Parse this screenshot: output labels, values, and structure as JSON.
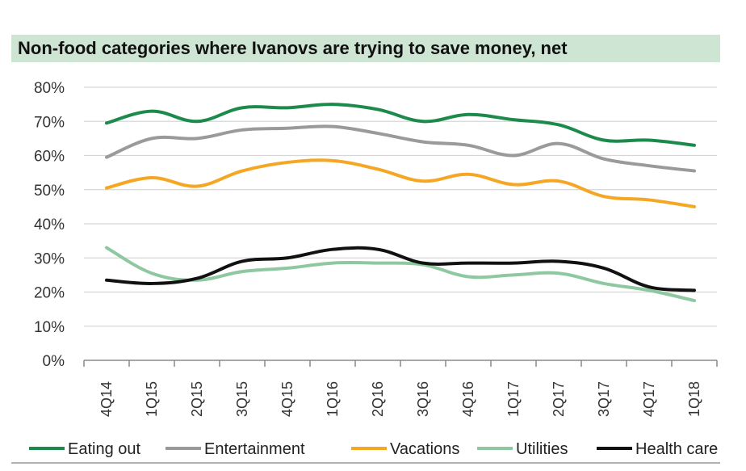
{
  "title": "Non-food categories where Ivanovs are trying to save money, net",
  "chart_data": {
    "type": "line",
    "title": "Non-food categories where Ivanovs are trying to save money, net",
    "xlabel": "",
    "ylabel": "",
    "ylim": [
      0,
      80
    ],
    "y_ticks": [
      "0%",
      "10%",
      "20%",
      "30%",
      "40%",
      "50%",
      "60%",
      "70%",
      "80%"
    ],
    "categories": [
      "4Q14",
      "1Q15",
      "2Q15",
      "3Q15",
      "4Q15",
      "1Q16",
      "2Q16",
      "3Q16",
      "4Q16",
      "1Q17",
      "2Q17",
      "3Q17",
      "4Q17",
      "1Q18"
    ],
    "grid": true,
    "legend_position": "bottom",
    "series": [
      {
        "name": "Eating out",
        "color": "#1b8a4a",
        "values": [
          69.5,
          73,
          70,
          74,
          74,
          75,
          73.5,
          70,
          72,
          70.5,
          69,
          64.5,
          64.5,
          63
        ]
      },
      {
        "name": "Entertainment",
        "color": "#9a9a9a",
        "values": [
          59.5,
          65,
          65,
          67.5,
          68,
          68.5,
          66.5,
          64,
          63,
          60,
          63.5,
          59,
          57,
          55.5
        ]
      },
      {
        "name": "Vacations",
        "color": "#f5a623",
        "values": [
          50.5,
          53.5,
          51,
          55.5,
          58,
          58.5,
          56,
          52.5,
          54.5,
          51.5,
          52.5,
          48,
          47,
          45
        ]
      },
      {
        "name": "Utilities",
        "color": "#8ec8a0",
        "values": [
          33,
          25.5,
          23.5,
          26,
          27,
          28.5,
          28.5,
          28,
          24.5,
          25,
          25.5,
          22.5,
          20.5,
          17.5
        ]
      },
      {
        "name": "Health care",
        "color": "#111111",
        "values": [
          23.5,
          22.5,
          24,
          29,
          30,
          32.5,
          32.5,
          28.5,
          28.5,
          28.5,
          29,
          27,
          21.5,
          20.5
        ]
      }
    ]
  }
}
